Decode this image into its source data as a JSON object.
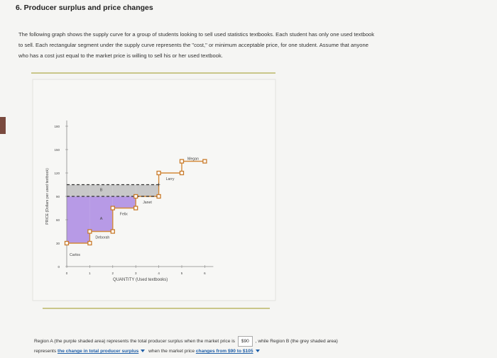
{
  "question": {
    "title": "6. Producer surplus and price changes",
    "paragraph_1": "The following graph shows the supply curve for a group of students looking to sell used statistics textbooks. Each student has only one used textbook",
    "paragraph_2": "to sell. Each rectangular segment under the supply curve represents the \"cost,\" or minimum acceptable price, for one student. Assume that anyone",
    "paragraph_3": "who has a cost just equal to the market price is willing to sell his or her used textbook."
  },
  "help": {
    "label": "?"
  },
  "chart_data": {
    "type": "step",
    "xlabel": "QUANTITY (Used textbooks)",
    "ylabel": "PRICE (Dollars per used textbook)",
    "x_ticks": [
      "0",
      "1",
      "2",
      "3",
      "4",
      "5",
      "6"
    ],
    "y_ticks": [
      "0",
      "30",
      "60",
      "90",
      "120",
      "150",
      "180"
    ],
    "xlim": [
      0,
      6
    ],
    "ylim": [
      0,
      180
    ],
    "sellers": [
      {
        "name": "Carlos",
        "cost": 30
      },
      {
        "name": "Deborah",
        "cost": 45
      },
      {
        "name": "Felix",
        "cost": 75
      },
      {
        "name": "Janet",
        "cost": 90
      },
      {
        "name": "Larry",
        "cost": 120
      },
      {
        "name": "Megan",
        "cost": 135
      }
    ],
    "region_labels": {
      "A": "A",
      "B": "B"
    },
    "price_lines": [
      90,
      105
    ],
    "colors": {
      "region_a": "#b79ae6",
      "region_b": "#c8c8c8",
      "supply": "#555555",
      "point": "#c87a2a"
    }
  },
  "answer": {
    "line1_pre": "Region A (the purple shaded area) represents the total producer surplus when the market price is",
    "price_value": "$90",
    "line1_post": ", while Region B (the grey shaded area)",
    "line2_pre": "represents",
    "dropdown1": "the change in total producer surplus",
    "line2_mid": "when the market price",
    "dropdown2": "changes from $90 to $105"
  }
}
